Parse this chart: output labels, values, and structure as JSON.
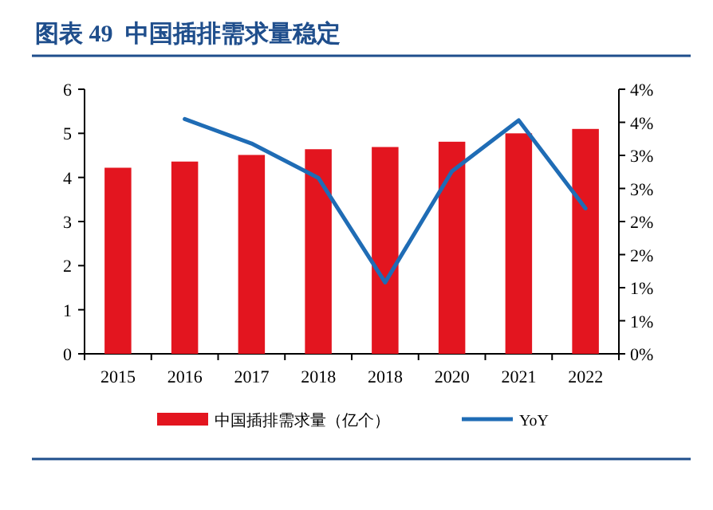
{
  "chart_data": {
    "type": "bar",
    "title": "图表 49  中国插排需求量稳定",
    "categories": [
      "2015",
      "2016",
      "2017",
      "2018",
      "2018",
      "2020",
      "2021",
      "2022"
    ],
    "series": [
      {
        "name": "中国插排需求量（亿个）",
        "color": "#e3151f",
        "values": [
          4.22,
          4.36,
          4.51,
          4.64,
          4.69,
          4.81,
          5.0,
          5.1
        ]
      },
      {
        "name": "YoY",
        "type": "line",
        "axis": "y2",
        "color": "#1f6cb5",
        "values": [
          null,
          3.55,
          3.18,
          2.66,
          1.08,
          2.76,
          3.53,
          2.2
        ]
      }
    ],
    "ylim": [
      0,
      6
    ],
    "yticks": [
      0,
      1,
      2,
      3,
      4,
      5,
      6
    ],
    "y2lim": [
      0,
      4
    ],
    "y2ticks": [
      {
        "value": 0,
        "label": "0%"
      },
      {
        "value": 0.5,
        "label": "1%"
      },
      {
        "value": 1,
        "label": "1%"
      },
      {
        "value": 1.5,
        "label": "2%"
      },
      {
        "value": 2,
        "label": "2%"
      },
      {
        "value": 2.5,
        "label": "3%"
      },
      {
        "value": 3,
        "label": "3%"
      },
      {
        "value": 3.5,
        "label": "4%"
      },
      {
        "value": 4,
        "label": "4%"
      }
    ],
    "legend": "bottom",
    "grid": false
  }
}
